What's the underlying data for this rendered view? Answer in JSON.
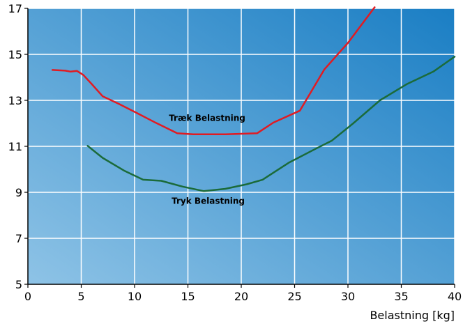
{
  "chart_data": {
    "type": "line",
    "title": "",
    "xlabel": "Belastning [kg]",
    "ylabel": "",
    "xlim": [
      0,
      40
    ],
    "ylim": [
      5,
      17
    ],
    "x_ticks": [
      0,
      5,
      10,
      15,
      20,
      25,
      30,
      35,
      40
    ],
    "y_ticks": [
      5,
      7,
      9,
      11,
      13,
      15,
      17
    ],
    "grid": true,
    "legend": "none",
    "background_gradient": [
      "#8ec3e6",
      "#1a7ec4"
    ],
    "series": [
      {
        "name": "Træk Belastning",
        "color": "#e11b22",
        "label_at": [
          16.8,
          12.1
        ],
        "points": [
          [
            2.3,
            14.32
          ],
          [
            3.5,
            14.29
          ],
          [
            4.0,
            14.25
          ],
          [
            4.6,
            14.28
          ],
          [
            5.2,
            14.1
          ],
          [
            6.0,
            13.7
          ],
          [
            7.0,
            13.18
          ],
          [
            8.5,
            12.85
          ],
          [
            10.0,
            12.5
          ],
          [
            12.0,
            12.02
          ],
          [
            14.0,
            11.57
          ],
          [
            15.5,
            11.52
          ],
          [
            18.5,
            11.52
          ],
          [
            20.5,
            11.55
          ],
          [
            21.5,
            11.57
          ],
          [
            23.0,
            12.03
          ],
          [
            25.5,
            12.55
          ],
          [
            27.8,
            14.35
          ],
          [
            30.0,
            15.5
          ],
          [
            32.5,
            17.05
          ]
        ]
      },
      {
        "name": "Tryk Belastning",
        "color": "#1b6b3a",
        "label_at": [
          16.9,
          8.5
        ],
        "points": [
          [
            5.6,
            11.02
          ],
          [
            7.0,
            10.5
          ],
          [
            9.0,
            9.95
          ],
          [
            10.8,
            9.55
          ],
          [
            12.5,
            9.5
          ],
          [
            14.5,
            9.25
          ],
          [
            16.5,
            9.05
          ],
          [
            18.5,
            9.15
          ],
          [
            20.5,
            9.35
          ],
          [
            22.0,
            9.55
          ],
          [
            24.5,
            10.3
          ],
          [
            27.0,
            10.9
          ],
          [
            28.5,
            11.25
          ],
          [
            30.5,
            12.0
          ],
          [
            33.0,
            13.0
          ],
          [
            35.5,
            13.7
          ],
          [
            38.0,
            14.25
          ],
          [
            40.0,
            14.9
          ]
        ]
      }
    ]
  }
}
